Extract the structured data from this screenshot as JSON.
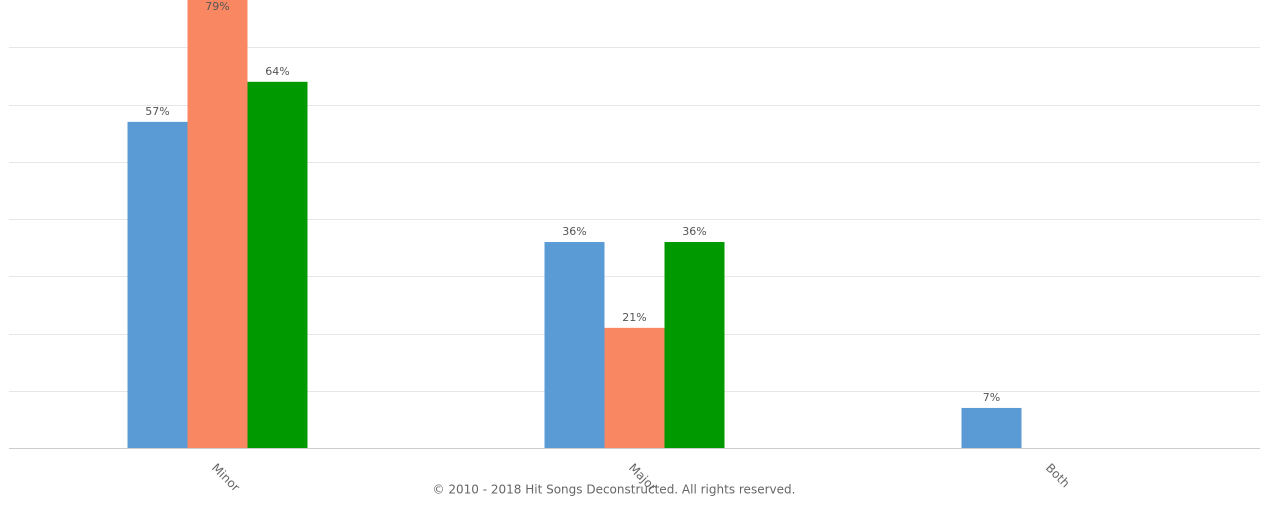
{
  "chart_data": {
    "type": "bar",
    "categories": [
      "Minor",
      "Major",
      "Both"
    ],
    "series": [
      {
        "color": "#5b9bd5",
        "values": [
          57,
          36,
          7
        ],
        "value_labels": [
          "57%",
          "36%",
          "7%"
        ]
      },
      {
        "color": "#f98862",
        "values": [
          79,
          21,
          null
        ],
        "value_labels": [
          "79%",
          "21%",
          null
        ]
      },
      {
        "color": "#009900",
        "values": [
          64,
          36,
          null
        ],
        "value_labels": [
          "64%",
          "36%",
          null
        ]
      }
    ],
    "ylim": [
      0,
      78.3
    ],
    "yticks": [
      0,
      10,
      20,
      30,
      40,
      50,
      60,
      70
    ],
    "grid": true,
    "credits": "© 2010 - 2018 Hit Songs Deconstructed. All rights reserved."
  }
}
